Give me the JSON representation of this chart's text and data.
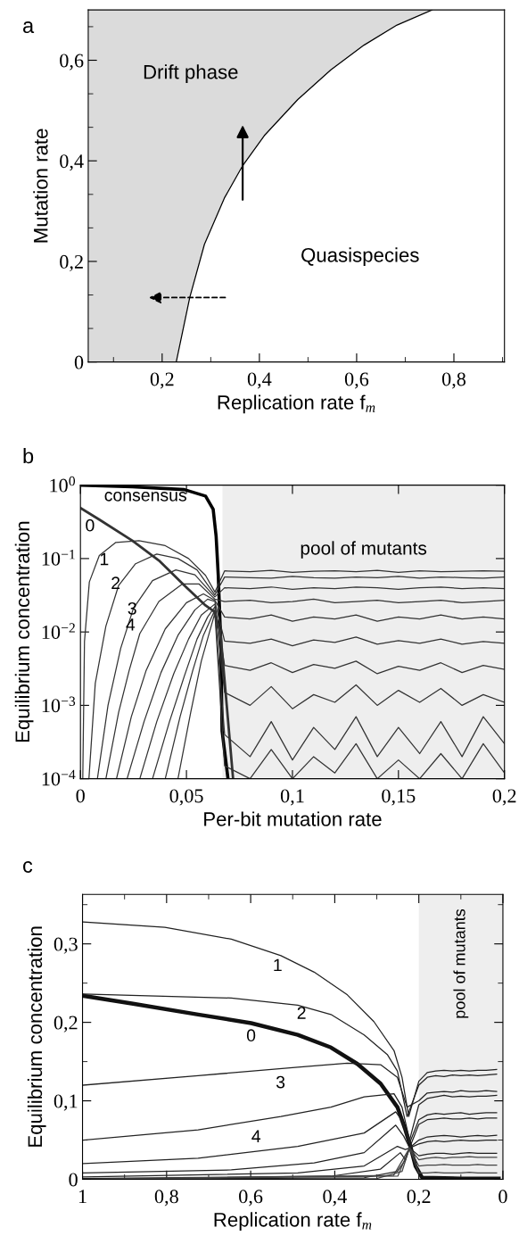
{
  "chart_data": [
    {
      "type": "line",
      "title": "a",
      "xlabel": "Replication rate f$_{m}$",
      "ylabel": "Mutation rate",
      "xlim": [
        0.048,
        0.904
      ],
      "xticks": [
        {
          "value": 0.1,
          "label": null
        },
        {
          "value": 0.2,
          "label": "0,2"
        },
        {
          "value": 0.3,
          "label": null
        },
        {
          "value": 0.4,
          "label": "0,4"
        },
        {
          "value": 0.5,
          "label": null
        },
        {
          "value": 0.6,
          "label": "0,6"
        },
        {
          "value": 0.7,
          "label": null
        },
        {
          "value": 0.8,
          "label": "0,8"
        },
        {
          "value": 0.9,
          "label": null
        }
      ],
      "ylim": [
        0,
        0.7
      ],
      "yticks": [
        0,
        {
          "value": 0.0667,
          "label": null
        },
        {
          "value": 0.1333,
          "label": null
        },
        {
          "value": 0.2,
          "label": "0,2"
        },
        {
          "value": 0.2667,
          "label": null
        },
        {
          "value": 0.3333,
          "label": null
        },
        {
          "value": 0.4,
          "label": "0,4"
        },
        {
          "value": 0.4667,
          "label": null
        },
        {
          "value": 0.5333,
          "label": null
        },
        {
          "value": 0.6,
          "label": "0,6"
        },
        {
          "value": 0.6667,
          "label": null
        }
      ],
      "annotations": [
        "Drift phase",
        "Quasispecies"
      ],
      "series": [
        {
          "type": "line",
          "color": "#000000",
          "x": [
            0.048,
            0.229,
            0.257,
            0.287,
            0.328,
            0.366,
            0.41,
            0.479,
            0.547,
            0.615,
            0.683,
            0.755
          ],
          "values": [
            0,
            0,
            0.129,
            0.234,
            0.326,
            0.391,
            0.45,
            0.522,
            0.581,
            0.63,
            0.67,
            0.7
          ],
          "lower": [
            0,
            0,
            0.129,
            0.234,
            0.326,
            0.391,
            0.45,
            0.522,
            0.581,
            0.63,
            0.67,
            0.7
          ],
          "upper": [
            0.7,
            0.7,
            0.7,
            0.7,
            0.7,
            0.7,
            0.7,
            0.7,
            0.7,
            0.7,
            0.7,
            0.7
          ]
        }
      ]
    },
    {
      "type": "line",
      "title": "b",
      "xlabel": "Per-bit mutation rate",
      "ylabel": "Equilibrium concentration",
      "log": "y",
      "xlim": [
        0,
        0.2
      ],
      "xticks": [
        0,
        {
          "value": 0.05,
          "label": "0,05"
        },
        {
          "value": 0.1,
          "label": "0,1"
        },
        {
          "value": 0.15,
          "label": "0,15"
        },
        {
          "value": 0.2,
          "label": "0,2"
        }
      ],
      "ylim": [
        0.0001,
        1
      ],
      "yticks": [
        {
          "value": 0.0001,
          "label": "10$^{−4}$"
        },
        {
          "value": 0.001,
          "label": "10$^{−3}$"
        },
        {
          "value": 0.01,
          "label": "10$^{−2}$"
        },
        {
          "value": 0.1,
          "label": "10$^{−1}$"
        },
        {
          "value": 1,
          "label": "10$^{0}$"
        }
      ],
      "bands": [
        {
          "axis": "x",
          "from": 0.067,
          "to": 0.2,
          "label": "pool of mutants",
          "color": "#eeeeee"
        }
      ],
      "annotations": [
        "consensus",
        "0",
        "1",
        "2",
        "3",
        "4"
      ],
      "series": [
        {
          "color": "#000000",
          "x": [
            0,
            0.0245,
            0.049,
            0.059,
            0.0626,
            0.064,
            0.065,
            0.0662,
            0.0668,
            0.0696
          ],
          "values": [
            1.0,
            0.95,
            0.87,
            0.71,
            0.47,
            0.2,
            0.059,
            0.0074,
            0.00045,
            0.0001
          ]
        },
        {
          "color": "#333333",
          "x": [
            0,
            0.0089,
            0.0245,
            0.037,
            0.049,
            0.059,
            0.063,
            0.066,
            0.069,
            0.072
          ],
          "values": [
            0.49,
            0.34,
            0.175,
            0.094,
            0.043,
            0.023,
            0.019,
            0.01,
            0.001,
            0.0001
          ]
        },
        {
          "color": "#333333",
          "x": [
            0.0011,
            0.0019,
            0.0042,
            0.0089,
            0.0167,
            0.0276,
            0.04,
            0.051,
            0.059,
            0.0634,
            0.068,
            0.08,
            0.09,
            0.1,
            0.11,
            0.12,
            0.13,
            0.14,
            0.15,
            0.16,
            0.17,
            0.18,
            0.19,
            0.2
          ],
          "values": [
            0.0001,
            0.0074,
            0.048,
            0.11,
            0.166,
            0.175,
            0.15,
            0.1,
            0.059,
            0.035,
            0.068,
            0.066,
            0.069,
            0.065,
            0.067,
            0.068,
            0.066,
            0.069,
            0.065,
            0.068,
            0.066,
            0.067,
            0.068,
            0.067
          ]
        },
        {
          "color": "#333333",
          "x": [
            0.004,
            0.007,
            0.012,
            0.018,
            0.026,
            0.036,
            0.046,
            0.055,
            0.0634,
            0.068,
            0.08,
            0.09,
            0.1,
            0.11,
            0.12,
            0.13,
            0.14,
            0.15,
            0.16,
            0.17,
            0.18,
            0.19,
            0.2
          ],
          "values": [
            0.0001,
            0.002,
            0.012,
            0.043,
            0.085,
            0.115,
            0.1,
            0.07,
            0.032,
            0.056,
            0.055,
            0.054,
            0.057,
            0.055,
            0.054,
            0.056,
            0.055,
            0.057,
            0.054,
            0.056,
            0.055,
            0.054,
            0.056
          ]
        },
        {
          "color": "#333333",
          "x": [
            0.008,
            0.013,
            0.019,
            0.025,
            0.034,
            0.045,
            0.054,
            0.0634,
            0.068,
            0.08,
            0.09,
            0.1,
            0.11,
            0.12,
            0.13,
            0.14,
            0.15,
            0.16,
            0.17,
            0.18,
            0.19,
            0.2
          ],
          "values": [
            0.0001,
            0.001,
            0.006,
            0.021,
            0.05,
            0.07,
            0.06,
            0.03,
            0.04,
            0.039,
            0.041,
            0.038,
            0.04,
            0.039,
            0.041,
            0.04,
            0.038,
            0.04,
            0.041,
            0.039,
            0.04,
            0.039
          ]
        },
        {
          "color": "#333333",
          "x": [
            0.012,
            0.018,
            0.023,
            0.028,
            0.037,
            0.048,
            0.056,
            0.0634,
            0.068,
            0.08,
            0.09,
            0.1,
            0.11,
            0.12,
            0.13,
            0.14,
            0.15,
            0.16,
            0.17,
            0.18,
            0.19,
            0.2
          ],
          "values": [
            0.0001,
            0.0008,
            0.003,
            0.0095,
            0.026,
            0.045,
            0.045,
            0.028,
            0.026,
            0.027,
            0.025,
            0.026,
            0.028,
            0.025,
            0.026,
            0.027,
            0.025,
            0.026,
            0.027,
            0.025,
            0.026,
            0.027
          ]
        },
        {
          "color": "#333333",
          "x": [
            0.017,
            0.024,
            0.031,
            0.04,
            0.05,
            0.058,
            0.0634,
            0.068,
            0.08,
            0.09,
            0.1,
            0.11,
            0.12,
            0.13,
            0.14,
            0.15,
            0.16,
            0.17,
            0.18,
            0.19,
            0.2
          ],
          "values": [
            0.0001,
            0.0007,
            0.003,
            0.011,
            0.025,
            0.033,
            0.027,
            0.016,
            0.015,
            0.017,
            0.014,
            0.016,
            0.015,
            0.017,
            0.014,
            0.016,
            0.015,
            0.017,
            0.015,
            0.016,
            0.015
          ]
        },
        {
          "color": "#333333",
          "x": [
            0.022,
            0.03,
            0.038,
            0.046,
            0.054,
            0.06,
            0.0634,
            0.068,
            0.08,
            0.09,
            0.1,
            0.11,
            0.12,
            0.13,
            0.14,
            0.15,
            0.16,
            0.17,
            0.18,
            0.19,
            0.2
          ],
          "values": [
            0.0001,
            0.0006,
            0.0028,
            0.009,
            0.02,
            0.028,
            0.026,
            0.0075,
            0.007,
            0.008,
            0.0065,
            0.0078,
            0.0072,
            0.0085,
            0.0068,
            0.0076,
            0.007,
            0.008,
            0.0068,
            0.0074,
            0.007
          ]
        },
        {
          "color": "#333333",
          "x": [
            0.028,
            0.036,
            0.044,
            0.051,
            0.057,
            0.0634,
            0.068,
            0.08,
            0.09,
            0.1,
            0.11,
            0.12,
            0.13,
            0.14,
            0.15,
            0.16,
            0.17,
            0.18,
            0.19,
            0.2
          ],
          "values": [
            0.0001,
            0.0006,
            0.0027,
            0.008,
            0.017,
            0.024,
            0.0035,
            0.003,
            0.0038,
            0.0028,
            0.0036,
            0.0032,
            0.004,
            0.0027,
            0.0034,
            0.003,
            0.0038,
            0.0028,
            0.0035,
            0.0031
          ]
        },
        {
          "color": "#333333",
          "x": [
            0.034,
            0.042,
            0.049,
            0.055,
            0.06,
            0.0634,
            0.068,
            0.08,
            0.09,
            0.1,
            0.11,
            0.12,
            0.13,
            0.14,
            0.15,
            0.16,
            0.17,
            0.18,
            0.19,
            0.2
          ],
          "values": [
            0.0001,
            0.0006,
            0.0025,
            0.008,
            0.016,
            0.022,
            0.0015,
            0.001,
            0.0018,
            0.0009,
            0.0014,
            0.0011,
            0.0019,
            0.001,
            0.0016,
            0.0011,
            0.0017,
            0.001,
            0.0014,
            0.0011
          ]
        },
        {
          "color": "#333333",
          "x": [
            0.04,
            0.047,
            0.053,
            0.058,
            0.0634,
            0.068,
            0.08,
            0.09,
            0.1,
            0.11,
            0.12,
            0.13,
            0.14,
            0.15,
            0.16,
            0.17,
            0.18,
            0.19,
            0.2
          ],
          "values": [
            0.0001,
            0.0007,
            0.003,
            0.009,
            0.02,
            0.0004,
            0.0002,
            0.0006,
            0.00018,
            0.0005,
            0.00025,
            0.0007,
            0.0002,
            0.0005,
            0.00022,
            0.0006,
            0.0002,
            0.0007,
            0.0003
          ]
        },
        {
          "color": "#333333",
          "x": [
            0.046,
            0.052,
            0.057,
            0.0634,
            0.068,
            0.08,
            0.09,
            0.1,
            0.11,
            0.12,
            0.13,
            0.14,
            0.15,
            0.16,
            0.17,
            0.18,
            0.19,
            0.2
          ],
          "values": [
            0.0001,
            0.0008,
            0.004,
            0.018,
            0.00015,
            0.0001,
            0.00025,
            0.0001,
            0.0002,
            0.00012,
            0.0003,
            0.0001,
            0.00018,
            0.0001,
            0.00022,
            0.0001,
            0.0003,
            0.00012
          ]
        }
      ]
    },
    {
      "type": "line",
      "title": "c",
      "xlabel": "Replication rate f$_{m}$",
      "ylabel": "Equilibrium concentration",
      "xlim": [
        1,
        0
      ],
      "xticks": [
        1,
        {
          "value": 0.9,
          "label": null
        },
        {
          "value": 0.8,
          "label": "0,8"
        },
        {
          "value": 0.7,
          "label": null
        },
        {
          "value": 0.6,
          "label": "0,6"
        },
        {
          "value": 0.5,
          "label": null
        },
        {
          "value": 0.4,
          "label": "0,4"
        },
        {
          "value": 0.3,
          "label": null
        },
        {
          "value": 0.2,
          "label": "0,2"
        },
        {
          "value": 0.1,
          "label": null
        },
        0
      ],
      "ylim": [
        0,
        0.363
      ],
      "yticks": [
        0,
        {
          "value": 0.05,
          "label": null
        },
        {
          "value": 0.1,
          "label": "0,1"
        },
        {
          "value": 0.15,
          "label": null
        },
        {
          "value": 0.2,
          "label": "0,2"
        },
        {
          "value": 0.25,
          "label": null
        },
        {
          "value": 0.3,
          "label": "0,3"
        },
        {
          "value": 0.35,
          "label": null
        }
      ],
      "bands": [
        {
          "axis": "x",
          "from": 0.2,
          "to": 0,
          "label": "pool of mutants",
          "color": "#eeeeee"
        }
      ],
      "annotations": [
        "1",
        "2",
        "0",
        "3",
        "4"
      ],
      "series": [
        {
          "color": "#111111",
          "x": [
            1.0,
            0.883,
            0.725,
            0.599,
            0.488,
            0.409,
            0.346,
            0.291,
            0.251,
            0.232,
            0.22,
            0.208,
            0.192,
            0.1,
            0.01
          ],
          "values": [
            0.234,
            0.224,
            0.21,
            0.199,
            0.184,
            0.168,
            0.147,
            0.122,
            0.092,
            0.063,
            0.042,
            0.017,
            0.002,
            0.001,
            0.001
          ]
        },
        {
          "color": "#222222",
          "x": [
            0.998,
            0.804,
            0.646,
            0.528,
            0.449,
            0.37,
            0.307,
            0.259,
            0.24,
            0.224,
            0.2,
            0.18,
            0.16,
            0.14,
            0.12,
            0.1,
            0.08,
            0.06,
            0.04,
            0.015
          ],
          "values": [
            0.328,
            0.321,
            0.306,
            0.285,
            0.264,
            0.235,
            0.201,
            0.164,
            0.13,
            0.08,
            0.125,
            0.136,
            0.138,
            0.139,
            0.138,
            0.139,
            0.138,
            0.139,
            0.139,
            0.14
          ]
        },
        {
          "color": "#222222",
          "x": [
            0.998,
            0.646,
            0.488,
            0.409,
            0.33,
            0.275,
            0.251,
            0.228,
            0.2,
            0.18,
            0.16,
            0.14,
            0.12,
            0.1,
            0.08,
            0.06,
            0.04,
            0.015
          ],
          "values": [
            0.236,
            0.231,
            0.222,
            0.21,
            0.184,
            0.159,
            0.138,
            0.08,
            0.12,
            0.13,
            0.132,
            0.131,
            0.133,
            0.132,
            0.133,
            0.132,
            0.133,
            0.134
          ]
        },
        {
          "color": "#222222",
          "x": [
            0.998,
            0.725,
            0.488,
            0.37,
            0.291,
            0.251,
            0.228,
            0.2,
            0.18,
            0.16,
            0.14,
            0.12,
            0.1,
            0.08,
            0.06,
            0.04,
            0.015
          ],
          "values": [
            0.12,
            0.132,
            0.143,
            0.148,
            0.146,
            0.13,
            0.092,
            0.1,
            0.11,
            0.111,
            0.112,
            0.111,
            0.113,
            0.112,
            0.112,
            0.113,
            0.112
          ]
        },
        {
          "color": "#222222",
          "x": [
            0.998,
            0.725,
            0.528,
            0.409,
            0.33,
            0.259,
            0.24,
            0.222,
            0.2,
            0.18,
            0.16,
            0.14,
            0.12,
            0.1,
            0.08,
            0.06,
            0.04,
            0.015
          ],
          "values": [
            0.05,
            0.063,
            0.08,
            0.092,
            0.105,
            0.109,
            0.092,
            0.05,
            0.095,
            0.103,
            0.105,
            0.107,
            0.105,
            0.106,
            0.105,
            0.106,
            0.106,
            0.107
          ]
        },
        {
          "color": "#222222",
          "x": [
            0.998,
            0.725,
            0.488,
            0.33,
            0.255,
            0.24,
            0.222,
            0.2,
            0.18,
            0.16,
            0.14,
            0.12,
            0.1,
            0.08,
            0.06,
            0.04,
            0.015
          ],
          "values": [
            0.02,
            0.027,
            0.042,
            0.059,
            0.086,
            0.075,
            0.046,
            0.076,
            0.082,
            0.084,
            0.083,
            0.084,
            0.085,
            0.083,
            0.084,
            0.085,
            0.085
          ]
        },
        {
          "color": "#222222",
          "x": [
            0.998,
            0.646,
            0.449,
            0.33,
            0.255,
            0.236,
            0.222,
            0.2,
            0.18,
            0.16,
            0.14,
            0.12,
            0.1,
            0.08,
            0.06,
            0.04,
            0.015
          ],
          "values": [
            0.008,
            0.012,
            0.021,
            0.034,
            0.069,
            0.055,
            0.04,
            0.07,
            0.076,
            0.077,
            0.078,
            0.077,
            0.077,
            0.078,
            0.077,
            0.078,
            0.078
          ]
        },
        {
          "color": "#222222",
          "x": [
            0.998,
            0.488,
            0.33,
            0.251,
            0.232,
            0.222,
            0.2,
            0.18,
            0.16,
            0.14,
            0.12,
            0.1,
            0.08,
            0.06,
            0.04,
            0.015
          ],
          "values": [
            0.003,
            0.008,
            0.017,
            0.042,
            0.038,
            0.04,
            0.05,
            0.054,
            0.055,
            0.056,
            0.055,
            0.054,
            0.055,
            0.056,
            0.055,
            0.056
          ]
        },
        {
          "color": "#222222",
          "x": [
            0.998,
            0.409,
            0.291,
            0.244,
            0.232,
            0.222,
            0.2,
            0.18,
            0.16,
            0.14,
            0.12,
            0.1,
            0.08,
            0.06,
            0.04,
            0.015
          ],
          "values": [
            0.001,
            0.004,
            0.013,
            0.034,
            0.025,
            0.04,
            0.045,
            0.048,
            0.049,
            0.048,
            0.049,
            0.05,
            0.049,
            0.049,
            0.05,
            0.05
          ]
        },
        {
          "color": "#222222",
          "x": [
            0.998,
            0.33,
            0.251,
            0.232,
            0.222,
            0.2,
            0.18,
            0.16,
            0.14,
            0.12,
            0.1,
            0.08,
            0.06,
            0.04,
            0.015
          ],
          "values": [
            0,
            0.002,
            0.01,
            0.025,
            0.04,
            0.03,
            0.032,
            0.033,
            0.033,
            0.032,
            0.033,
            0.034,
            0.033,
            0.033,
            0.033
          ]
        },
        {
          "color": "#444444",
          "x": [
            1,
            0.5,
            0.3,
            0.24,
            0.222,
            0.2,
            0.18,
            0.16,
            0.14,
            0.12,
            0.1,
            0.08,
            0.06,
            0.04,
            0.015
          ],
          "values": [
            0,
            0,
            0.001,
            0.01,
            0.04,
            0.025,
            0.027,
            0.028,
            0.027,
            0.028,
            0.028,
            0.029,
            0.028,
            0.028,
            0.028
          ]
        },
        {
          "color": "#444444",
          "x": [
            1,
            0.26,
            0.222,
            0.2,
            0.18,
            0.16,
            0.14,
            0.12,
            0.1,
            0.08,
            0.06,
            0.04,
            0.015
          ],
          "values": [
            0,
            0.005,
            0.04,
            0.017,
            0.018,
            0.018,
            0.019,
            0.018,
            0.018,
            0.018,
            0.019,
            0.018,
            0.018
          ]
        },
        {
          "color": "#444444",
          "x": [
            1,
            0.25,
            0.222,
            0.2,
            0.18,
            0.16,
            0.14,
            0.12,
            0.1,
            0.08,
            0.06,
            0.04,
            0.015
          ],
          "values": [
            0,
            0.004,
            0.04,
            0.008,
            0.008,
            0.009,
            0.008,
            0.008,
            0.008,
            0.009,
            0.008,
            0.008,
            0.008
          ]
        }
      ]
    }
  ]
}
